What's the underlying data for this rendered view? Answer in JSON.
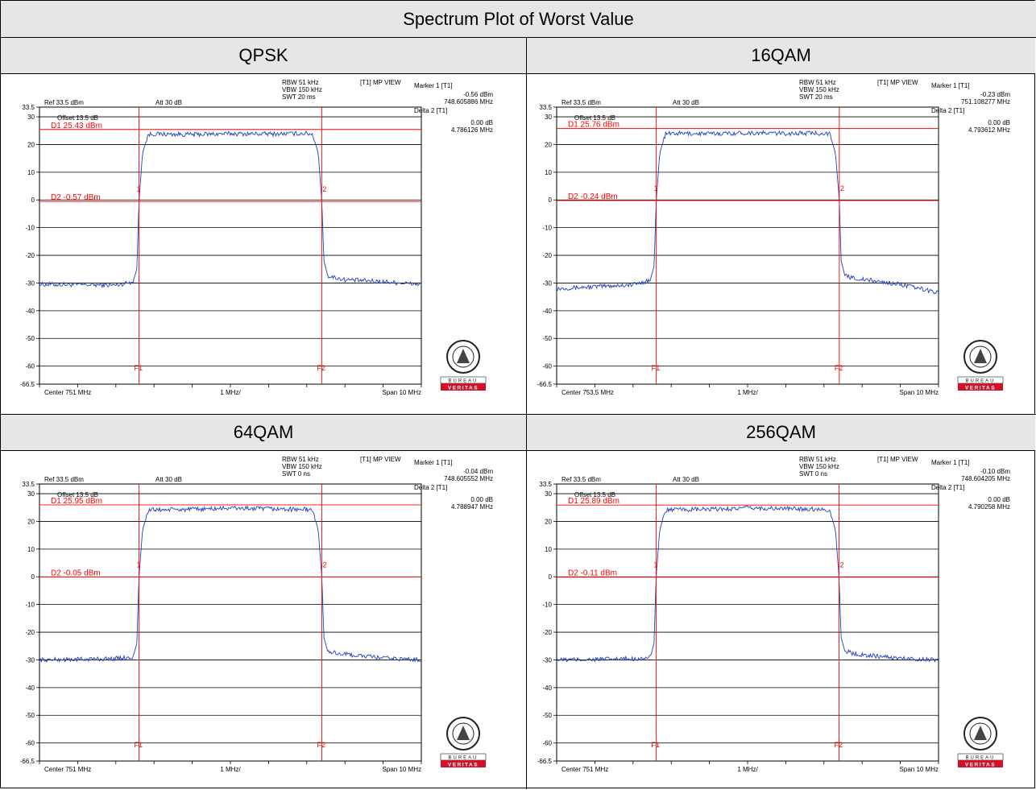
{
  "table": {
    "title": "Spectrum Plot of Worst Value"
  },
  "logo": {
    "text": "BUREAU VERITAS",
    "seal_text": "BUREAU VERITAS 1828"
  },
  "colors": {
    "trace": "#1f3fbf",
    "marker": "#ff0000",
    "grid": "#000000",
    "band": "#e6e6e6"
  },
  "chart_data": [
    {
      "type": "line",
      "title": "QPSK",
      "ref_label": "Ref 33.5 dBm",
      "att_label": "Att  30 dB",
      "offset_label": "Offset 13.5 dB",
      "settings": [
        "RBW 51 kHz",
        "VBW 150 kHz",
        "SWT 20 ms"
      ],
      "view_label": "[T1] MP VIEW",
      "marker_info": [
        "Marker 1 [T1]",
        "-0.56 dBm",
        "748.605886 MHz",
        "Delta 2 [T1]",
        "0.00 dB",
        "4.786126 MHz"
      ],
      "center_label": "Center 751 MHz",
      "div_label": "1 MHz/",
      "span_label": "Span 10 MHz",
      "ylim": [
        -66.5,
        33.5
      ],
      "yticks": [
        33.5,
        30,
        20,
        10,
        0,
        -10,
        -20,
        -30,
        -40,
        -50,
        -60,
        -66.5
      ],
      "ytick_labels": [
        "33.5",
        "30",
        "20",
        "10",
        "0",
        "-10",
        "-20",
        "-30",
        "-40",
        "-50",
        "-60",
        "-66.5"
      ],
      "xlim": [
        746,
        756
      ],
      "d1": {
        "label": "D1 25.43 dBm",
        "value": 25.43
      },
      "d2": {
        "label": "D2 -0.57 dBm",
        "value": -0.57
      },
      "f1": {
        "label": "F1",
        "x": 748.606
      },
      "f2": {
        "label": "F2",
        "x": 753.392
      },
      "marker1_label": "1",
      "marker2_label": "2",
      "series": [
        {
          "x": [
            746.0,
            747.0,
            748.0,
            748.45,
            748.55,
            748.606,
            748.7,
            748.85,
            749.0,
            750.0,
            751.0,
            752.0,
            753.0,
            753.15,
            753.3,
            753.392,
            753.45,
            753.55,
            754.0,
            755.0,
            756.0
          ],
          "y": [
            -30.5,
            -30.6,
            -30.8,
            -29.5,
            -25.0,
            -0.56,
            17.0,
            23.6,
            23.8,
            23.6,
            23.9,
            23.8,
            24.0,
            23.7,
            17.0,
            0.0,
            -22.0,
            -27.5,
            -28.8,
            -29.5,
            -30.5
          ]
        }
      ]
    },
    {
      "type": "line",
      "title": "16QAM",
      "ref_label": "Ref 33.5 dBm",
      "att_label": "Att  30 dB",
      "offset_label": "Offset 13.5 dB",
      "settings": [
        "RBW 51 kHz",
        "VBW 150 kHz",
        "SWT 20 ms"
      ],
      "view_label": "[T1] MP VIEW",
      "marker_info": [
        "Marker 1 [T1]",
        "-0.23 dBm",
        "751.108277 MHz",
        "Delta 2 [T1]",
        "0.00 dB",
        "4.793612 MHz"
      ],
      "center_label": "Center 753.5 MHz",
      "div_label": "1 MHz/",
      "span_label": "Span 10 MHz",
      "ylim": [
        -66.5,
        33.5
      ],
      "yticks": [
        33.5,
        30,
        20,
        10,
        0,
        -10,
        -20,
        -30,
        -40,
        -50,
        -60,
        -66.5
      ],
      "ytick_labels": [
        "33.5",
        "30",
        "20",
        "10",
        "0",
        "-10",
        "-20",
        "-30",
        "-40",
        "-50",
        "-60",
        "-66.5"
      ],
      "xlim": [
        748.5,
        758.5
      ],
      "d1": {
        "label": "D1 25.76 dBm",
        "value": 25.76
      },
      "d2": {
        "label": "D2 -0.24 dBm",
        "value": -0.24
      },
      "f1": {
        "label": "F1",
        "x": 751.108
      },
      "f2": {
        "label": "F2",
        "x": 755.902
      },
      "marker1_label": "1",
      "marker2_label": "2",
      "series": [
        {
          "x": [
            748.5,
            749.5,
            750.5,
            750.95,
            751.05,
            751.108,
            751.2,
            751.35,
            751.5,
            752.5,
            753.5,
            754.5,
            755.5,
            755.65,
            755.8,
            755.902,
            755.95,
            756.05,
            756.5,
            757.5,
            758.5
          ],
          "y": [
            -32.0,
            -31.3,
            -30.6,
            -29.0,
            -24.0,
            -0.23,
            17.0,
            23.8,
            24.0,
            23.9,
            24.2,
            24.0,
            24.1,
            23.8,
            17.0,
            0.0,
            -22.0,
            -27.5,
            -28.7,
            -30.5,
            -33.5
          ]
        }
      ]
    },
    {
      "type": "line",
      "title": "64QAM",
      "ref_label": "Ref 33.5 dBm",
      "att_label": "Att  30 dB",
      "offset_label": "Offset 13.5 dB",
      "settings": [
        "RBW 51 kHz",
        "VBW 150 kHz",
        "SWT 0 ns"
      ],
      "view_label": "[T1] MP VIEW",
      "marker_info": [
        "Marker 1 [T1]",
        "-0.04 dBm",
        "748.605552 MHz",
        "Delta 2 [T1]",
        "0.00 dB",
        "4.788947 MHz"
      ],
      "center_label": "Center 751 MHz",
      "div_label": "1 MHz/",
      "span_label": "Span 10 MHz",
      "ylim": [
        -66.5,
        33.5
      ],
      "yticks": [
        33.5,
        30,
        20,
        10,
        0,
        -10,
        -20,
        -30,
        -40,
        -50,
        -60,
        -66.5
      ],
      "ytick_labels": [
        "33.5",
        "30",
        "20",
        "10",
        "0",
        "-10",
        "-20",
        "-30",
        "-40",
        "-50",
        "-60",
        "-66.5"
      ],
      "xlim": [
        746,
        756
      ],
      "d1": {
        "label": "D1 25.95 dBm",
        "value": 25.95
      },
      "d2": {
        "label": "D2 -0.05 dBm",
        "value": -0.05
      },
      "f1": {
        "label": "F1",
        "x": 748.606
      },
      "f2": {
        "label": "F2",
        "x": 753.394
      },
      "marker1_label": "1",
      "marker2_label": "2",
      "series": [
        {
          "x": [
            746.0,
            747.0,
            748.0,
            748.45,
            748.55,
            748.606,
            748.7,
            748.85,
            749.0,
            750.0,
            751.0,
            752.0,
            753.0,
            753.15,
            753.3,
            753.394,
            753.45,
            753.55,
            754.0,
            755.0,
            756.0
          ],
          "y": [
            -30.0,
            -29.8,
            -29.5,
            -29.0,
            -24.0,
            -0.04,
            17.0,
            24.0,
            24.2,
            24.3,
            24.8,
            24.5,
            24.3,
            24.0,
            17.0,
            0.0,
            -22.0,
            -27.0,
            -28.0,
            -29.3,
            -30.0
          ]
        }
      ]
    },
    {
      "type": "line",
      "title": "256QAM",
      "ref_label": "Ref 33.5 dBm",
      "att_label": "Att  30 dB",
      "offset_label": "Offset 13.5 dB",
      "settings": [
        "RBW 51 kHz",
        "VBW 150 kHz",
        "SWT 0 ns"
      ],
      "view_label": "[T1] MP VIEW",
      "marker_info": [
        "Marker 1 [T1]",
        "-0.10 dBm",
        "748.604205 MHz",
        "Delta 2 [T1]",
        "0.00 dB",
        "4.790258 MHz"
      ],
      "center_label": "Center 751 MHz",
      "div_label": "1 MHz/",
      "span_label": "Span 10 MHz",
      "ylim": [
        -66.5,
        33.5
      ],
      "yticks": [
        33.5,
        30,
        20,
        10,
        0,
        -10,
        -20,
        -30,
        -40,
        -50,
        -60,
        -66.5
      ],
      "ytick_labels": [
        "33.5",
        "30",
        "20",
        "10",
        "0",
        "-10",
        "-20",
        "-30",
        "-40",
        "-50",
        "-60",
        "-66.5"
      ],
      "xlim": [
        746,
        756
      ],
      "d1": {
        "label": "D1 25.89 dBm",
        "value": 25.89
      },
      "d2": {
        "label": "D2 -0.11 dBm",
        "value": -0.11
      },
      "f1": {
        "label": "F1",
        "x": 748.604
      },
      "f2": {
        "label": "F2",
        "x": 753.394
      },
      "marker1_label": "1",
      "marker2_label": "2",
      "series": [
        {
          "x": [
            746.0,
            747.0,
            748.0,
            748.45,
            748.55,
            748.604,
            748.7,
            748.85,
            749.0,
            750.0,
            751.0,
            752.0,
            753.0,
            753.15,
            753.3,
            753.394,
            753.45,
            753.55,
            754.0,
            755.0,
            756.0
          ],
          "y": [
            -30.0,
            -29.8,
            -29.6,
            -29.2,
            -24.0,
            -0.1,
            17.0,
            24.0,
            24.2,
            24.3,
            24.8,
            24.6,
            24.4,
            24.0,
            17.0,
            0.0,
            -22.0,
            -27.0,
            -28.2,
            -29.4,
            -30.0
          ]
        }
      ]
    }
  ]
}
